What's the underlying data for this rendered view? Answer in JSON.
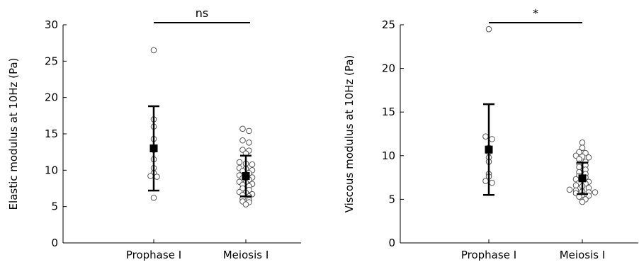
{
  "chart_data": [
    {
      "type": "scatter",
      "ylabel": "Elastic modulus at 10Hz (Pa)",
      "ylim": [
        0,
        30
      ],
      "yticks": [
        0,
        5,
        10,
        15,
        20,
        25,
        30
      ],
      "categories": [
        "Prophase I",
        "Meiosis I"
      ],
      "significance": "ns",
      "groups": [
        {
          "category": "Prophase I",
          "mean": 13.0,
          "error": [
            7.2,
            18.8
          ],
          "points": [
            26.5,
            17.0,
            16.0,
            14.3,
            12.8,
            11.5,
            10.3,
            9.6,
            9.2,
            9.1,
            6.2
          ]
        },
        {
          "category": "Meiosis I",
          "mean": 9.2,
          "error": [
            6.4,
            12.0
          ],
          "points": [
            15.7,
            15.4,
            14.1,
            13.8,
            12.8,
            12.7,
            12.3,
            11.1,
            10.9,
            10.8,
            10.3,
            10.2,
            10.0,
            9.9,
            9.6,
            9.3,
            9.2,
            9.0,
            8.9,
            8.7,
            8.4,
            8.3,
            8.1,
            8.0,
            7.8,
            7.5,
            7.3,
            7.0,
            6.9,
            6.7,
            6.6,
            6.4,
            6.1,
            5.9,
            5.7,
            5.6,
            5.3
          ]
        }
      ]
    },
    {
      "type": "scatter",
      "ylabel": "Viscous modulus at 10Hz (Pa)",
      "ylim": [
        0,
        25
      ],
      "yticks": [
        0,
        5,
        10,
        15,
        20,
        25
      ],
      "categories": [
        "Prophase I",
        "Meiosis I"
      ],
      "significance": "*",
      "groups": [
        {
          "category": "Prophase I",
          "mean": 10.7,
          "error": [
            5.5,
            15.9
          ],
          "points": [
            24.5,
            12.2,
            11.9,
            10.9,
            10.4,
            9.8,
            9.3,
            7.9,
            7.6,
            7.1,
            6.9
          ]
        },
        {
          "category": "Meiosis I",
          "mean": 7.4,
          "error": [
            5.6,
            9.2
          ],
          "points": [
            11.5,
            10.9,
            10.4,
            10.3,
            10.0,
            9.9,
            9.8,
            9.6,
            9.3,
            9.1,
            8.9,
            8.7,
            8.4,
            8.1,
            7.9,
            7.7,
            7.5,
            7.3,
            7.2,
            7.0,
            6.9,
            6.8,
            6.6,
            6.5,
            6.3,
            6.1,
            6.0,
            5.9,
            5.8,
            5.8,
            5.7,
            5.5,
            5.4,
            5.3,
            5.0,
            4.7
          ]
        }
      ]
    }
  ]
}
